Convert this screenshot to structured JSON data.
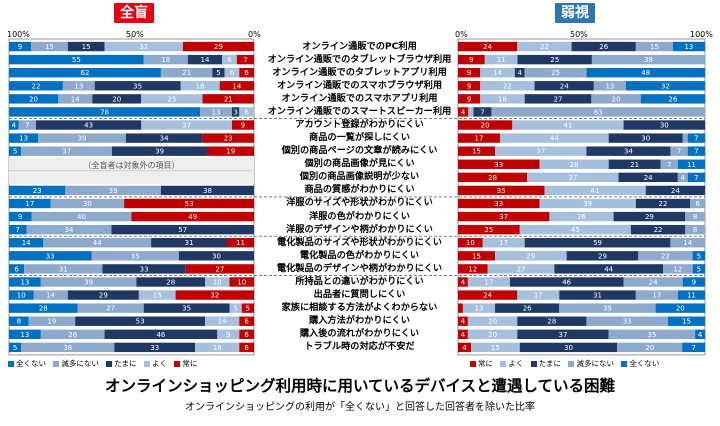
{
  "chart_data": {
    "type": "bar",
    "title": "オンラインショッピング利用時に用いているデバイスと遭遇している困難",
    "subtitle": "オンラインショッピングの利用が「全くない」と回答した回答者を除いた比率",
    "categories": [
      "オンライン通販でのPC利用",
      "オンライン通販でのタブレットブラウザ利用",
      "オンライン通販でのタブレットアプリ利用",
      "オンライン通販でのスマホブラウザ利用",
      "オンライン通販でのスマホアプリ利用",
      "オンライン通販でのスマートスピーカー利用",
      "アカウント登録がわかりにくい",
      "商品の一覧が探しにくい",
      "個別の商品ページの文章が読みにくい",
      "個別の商品画像が見にくい",
      "個別の商品画像説明が少ない",
      "商品の質感がわかりにくい",
      "洋服のサイズや形状がわかりにくい",
      "洋服の色がわかりにくい",
      "洋服のデザインや柄がわかりにくい",
      "電化製品のサイズや形状がわかりにくい",
      "電化製品の色がわかりにくい",
      "電化製品のデザインや柄がわかりにくい",
      "所持品との違いがわかりにくい",
      "出品者に質問しにくい",
      "家族に相談する方法がよくわからない",
      "購入方法がわかりにくい",
      "購入後の流れがわかりにくい",
      "トラブル時の対応が不安だ"
    ],
    "category_order": [
      "全くない",
      "滅多にない",
      "たまに",
      "よく",
      "常に"
    ],
    "colors": {
      "全くない": "#0070c0",
      "滅多にない": "#8da9cc",
      "たまに": "#1f3864",
      "よく": "#a6bfdc",
      "常に": "#c00000"
    },
    "panels": [
      {
        "name": "全盲",
        "direction": "right-to-left",
        "axis_labels": [
          "100%",
          "50%",
          "0%"
        ],
        "note": "（全盲者は対象外の項目）",
        "note_rows": [
          9,
          10
        ],
        "values": [
          [
            9,
            15,
            15,
            32,
            29
          ],
          [
            55,
            18,
            14,
            6,
            7
          ],
          [
            62,
            21,
            5,
            6,
            6
          ],
          [
            22,
            13,
            35,
            16,
            14
          ],
          [
            20,
            14,
            20,
            25,
            21
          ],
          [
            78,
            13,
            3,
            6,
            0
          ],
          [
            4,
            7,
            43,
            37,
            9
          ],
          [
            13,
            39,
            34,
            null,
            23
          ],
          [
            5,
            37,
            39,
            null,
            19
          ],
          null,
          null,
          [
            23,
            39,
            38,
            null,
            null
          ],
          [
            17,
            30,
            null,
            null,
            53
          ],
          [
            9,
            40,
            null,
            null,
            49
          ],
          [
            7,
            34,
            57,
            null,
            null
          ],
          [
            14,
            44,
            31,
            null,
            11
          ],
          [
            33,
            35,
            30,
            null,
            null
          ],
          [
            6,
            31,
            33,
            null,
            27
          ],
          [
            13,
            39,
            28,
            10,
            10
          ],
          [
            10,
            14,
            29,
            15,
            32
          ],
          [
            28,
            27,
            35,
            5,
            5
          ],
          [
            8,
            19,
            53,
            14,
            6
          ],
          [
            13,
            26,
            46,
            9,
            6
          ],
          [
            5,
            38,
            33,
            18,
            6
          ]
        ]
      },
      {
        "name": "弱視",
        "direction": "left-to-right",
        "axis_labels": [
          "0%",
          "50%",
          "100%"
        ],
        "values": [
          [
            24,
            22,
            26,
            15,
            13
          ],
          [
            9,
            11,
            25,
            38,
            null
          ],
          [
            9,
            14,
            4,
            25,
            48
          ],
          [
            9,
            22,
            24,
            13,
            32
          ],
          [
            9,
            18,
            27,
            20,
            26
          ],
          [
            4,
            2,
            7,
            83,
            null
          ],
          [
            20,
            41,
            30,
            null,
            null
          ],
          [
            17,
            44,
            30,
            2,
            7
          ],
          [
            15,
            37,
            34,
            7,
            7
          ],
          [
            33,
            28,
            21,
            7,
            11
          ],
          [
            28,
            37,
            24,
            4,
            7
          ],
          [
            35,
            41,
            24,
            null,
            null
          ],
          [
            33,
            39,
            22,
            6,
            null
          ],
          [
            37,
            26,
            29,
            8,
            null
          ],
          [
            25,
            45,
            22,
            8,
            null
          ],
          [
            10,
            17,
            59,
            14,
            null
          ],
          [
            15,
            29,
            29,
            22,
            5
          ],
          [
            12,
            27,
            44,
            12,
            5
          ],
          [
            4,
            17,
            46,
            24,
            9
          ],
          [
            24,
            17,
            31,
            17,
            11
          ],
          [
            2,
            13,
            26,
            39,
            20
          ],
          [
            4,
            20,
            28,
            33,
            15
          ],
          [
            4,
            20,
            37,
            35,
            4
          ],
          [
            4,
            15,
            30,
            20,
            7
          ]
        ]
      }
    ],
    "legend_left": [
      "全くない",
      "滅多にない",
      "たまに",
      "よく",
      "常に"
    ],
    "legend_right": [
      "常に",
      "よく",
      "たまに",
      "滅多にない",
      "全くない"
    ]
  }
}
